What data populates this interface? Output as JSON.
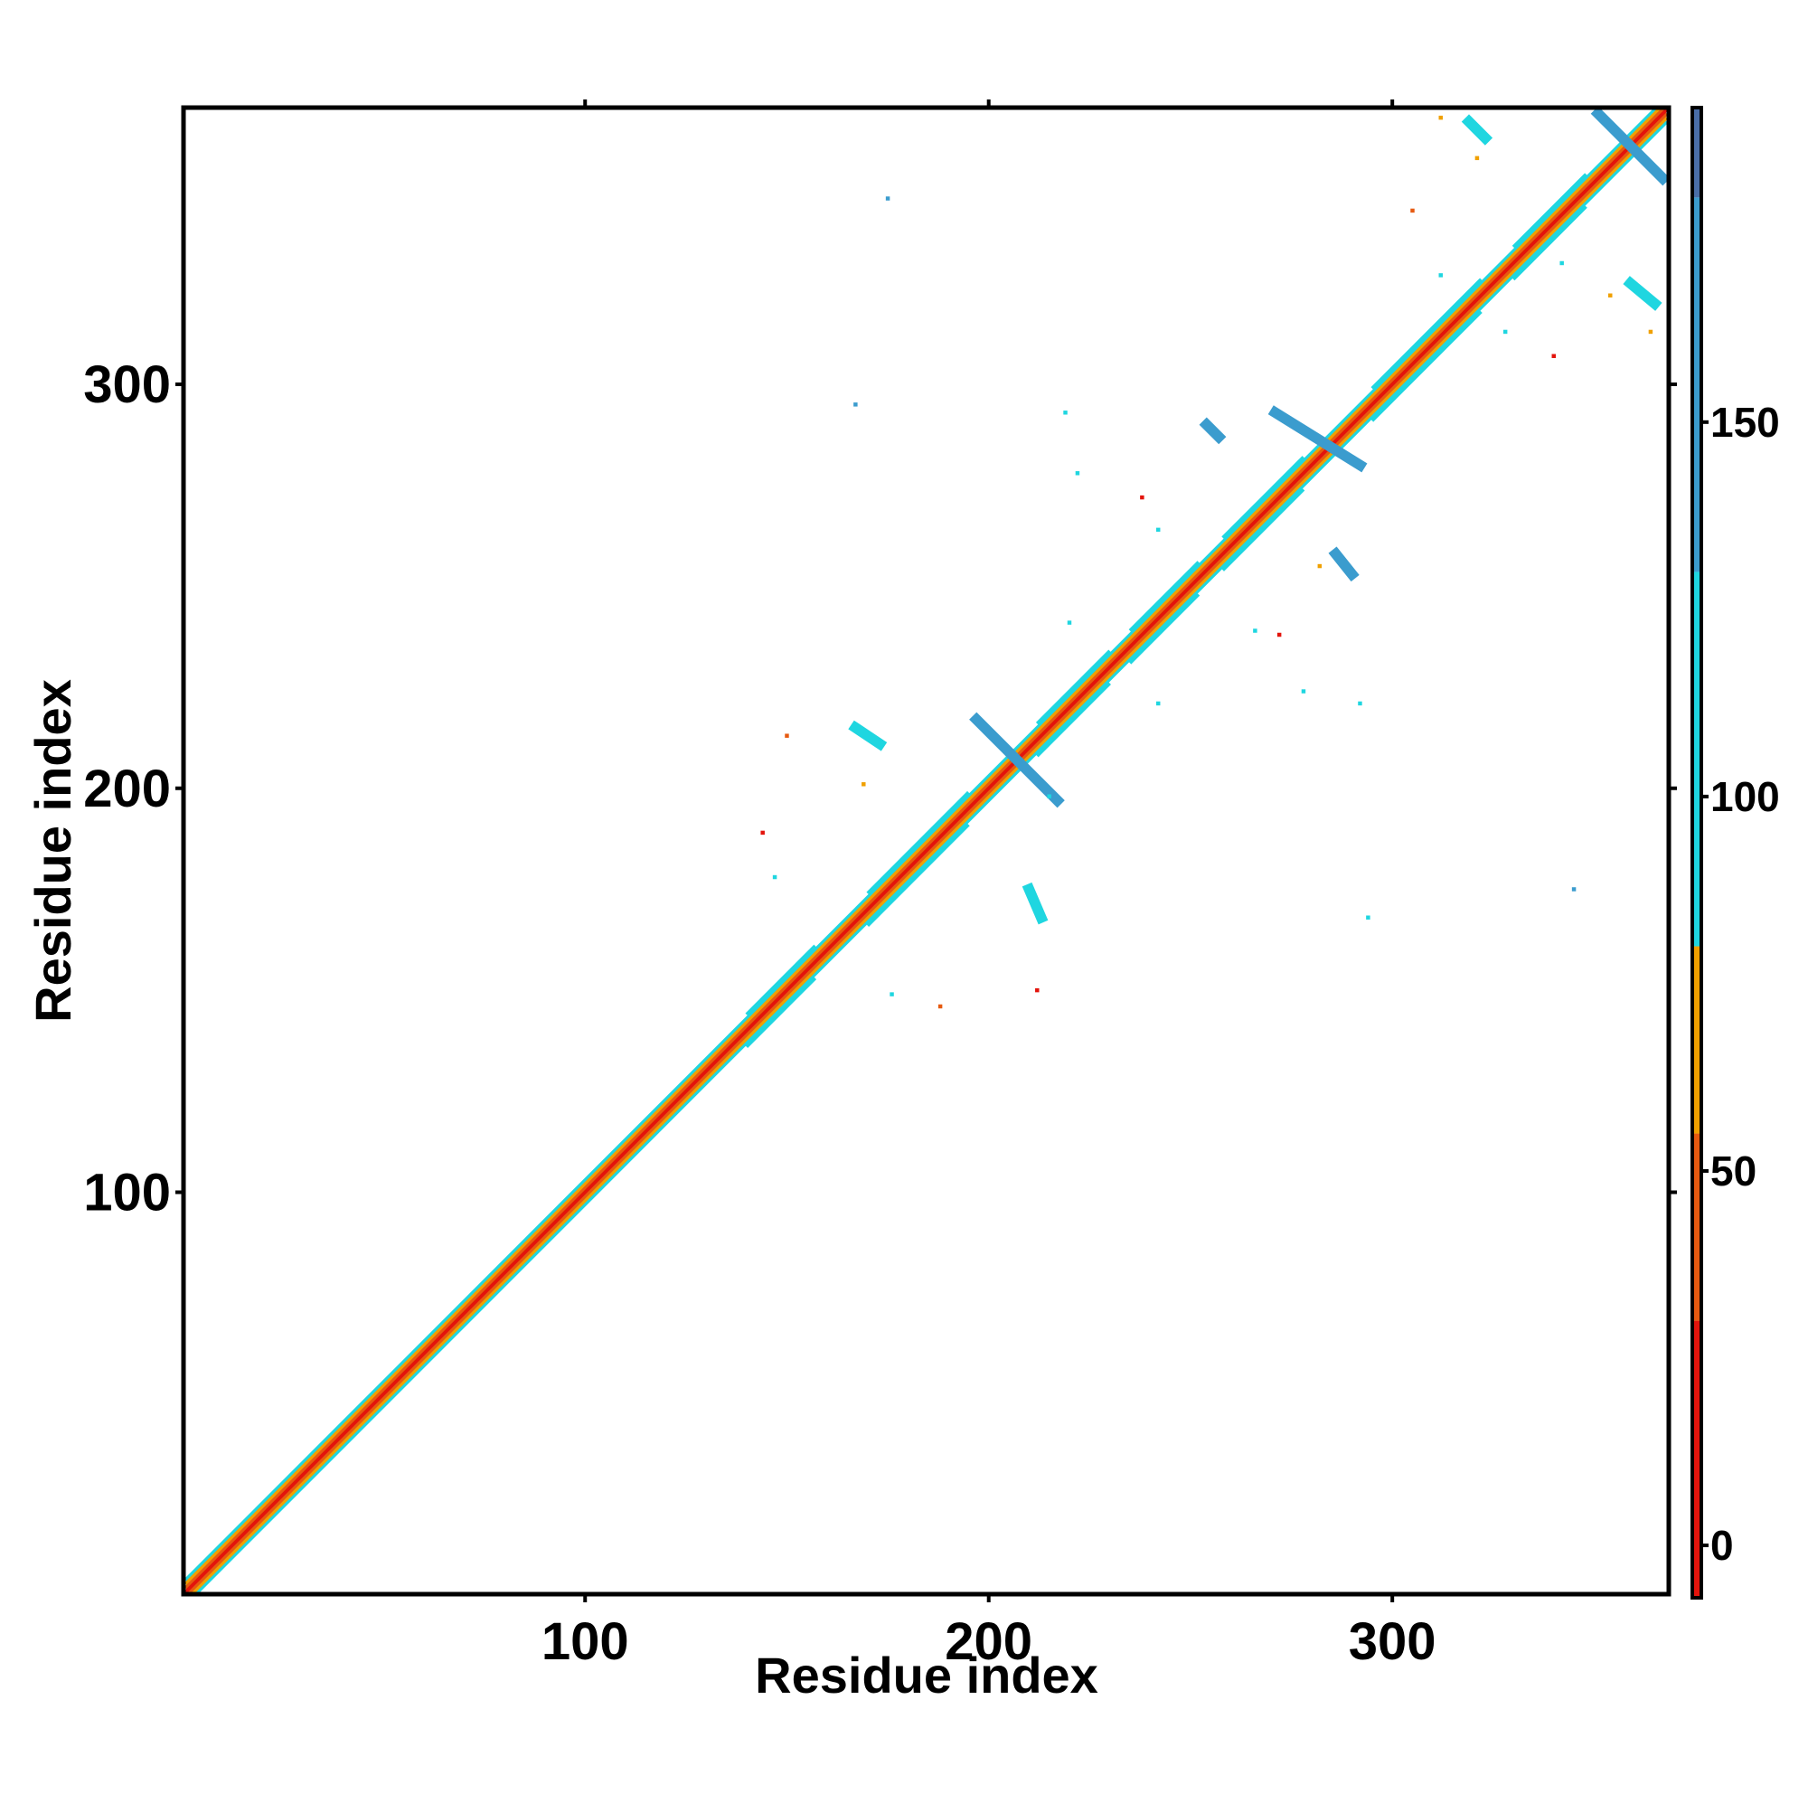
{
  "chart_data": {
    "type": "heatmap",
    "xlabel": "Residue index",
    "ylabel": "Residue index",
    "xlim": [
      0.5,
      368.5
    ],
    "ylim": [
      0.5,
      368.5
    ],
    "xticks": [
      100,
      200,
      300
    ],
    "yticks": [
      100,
      200,
      300
    ],
    "colorbar": {
      "lim": [
        -7,
        192
      ],
      "ticks": [
        0,
        50,
        100,
        150
      ],
      "bins": [
        -7,
        30,
        55,
        80,
        130,
        180,
        192
      ],
      "colors": [
        "#e3140c",
        "#e65a10",
        "#f0a000",
        "#1fd6e0",
        "#3b9cce",
        "#4a6ea8",
        "#ffffff"
      ]
    },
    "bands": [
      {
        "x": [
          1,
          368
        ],
        "offset": 0,
        "value": 5
      },
      {
        "x": [
          1,
          368
        ],
        "offset": 1,
        "value": 40
      },
      {
        "x": [
          1,
          368
        ],
        "offset": -1,
        "value": 40
      },
      {
        "x": [
          1,
          368
        ],
        "offset": 2,
        "value": 60
      },
      {
        "x": [
          1,
          368
        ],
        "offset": -2,
        "value": 60
      },
      {
        "x": [
          1,
          368
        ],
        "offset": 3,
        "value": 95
      },
      {
        "x": [
          1,
          368
        ],
        "offset": -3,
        "value": 95
      },
      {
        "x": [
          140,
          157
        ],
        "offset": 4,
        "value": 100
      },
      {
        "x": [
          140,
          157
        ],
        "offset": -4,
        "value": 100
      },
      {
        "x": [
          170,
          195
        ],
        "offset": 4,
        "value": 100
      },
      {
        "x": [
          170,
          195
        ],
        "offset": -4,
        "value": 100
      },
      {
        "x": [
          212,
          230
        ],
        "offset": 4,
        "value": 100
      },
      {
        "x": [
          212,
          230
        ],
        "offset": -4,
        "value": 100
      },
      {
        "x": [
          235,
          252
        ],
        "offset": 4,
        "value": 100
      },
      {
        "x": [
          235,
          252
        ],
        "offset": -4,
        "value": 100
      },
      {
        "x": [
          258,
          278
        ],
        "offset": 4,
        "value": 100
      },
      {
        "x": [
          258,
          278
        ],
        "offset": -4,
        "value": 100
      },
      {
        "x": [
          295,
          322
        ],
        "offset": 4,
        "value": 100
      },
      {
        "x": [
          295,
          322
        ],
        "offset": -4,
        "value": 100
      },
      {
        "x": [
          330,
          348
        ],
        "offset": 4,
        "value": 100
      },
      {
        "x": [
          330,
          348
        ],
        "offset": -4,
        "value": 100
      }
    ],
    "strands": [
      {
        "x": [
          197,
          217
        ],
        "y": [
          217,
          197
        ],
        "value": 130
      },
      {
        "x": [
          271,
          292
        ],
        "y": [
          293,
          280
        ],
        "value": 135
      },
      {
        "x": [
          351,
          367
        ],
        "y": [
          367,
          351
        ],
        "value": 135
      },
      {
        "x": [
          254,
          257
        ],
        "y": [
          290,
          287
        ],
        "value": 145
      },
      {
        "x": [
          286,
          290
        ],
        "y": [
          258,
          253
        ],
        "value": 130
      },
      {
        "x": [
          319,
          323
        ],
        "y": [
          365,
          361
        ],
        "value": 110
      },
      {
        "x": [
          359,
          365
        ],
        "y": [
          325,
          320
        ],
        "value": 120
      },
      {
        "x": [
          167,
          173
        ],
        "y": [
          215,
          211
        ],
        "value": 110
      },
      {
        "x": [
          210,
          213
        ],
        "y": [
          175,
          168
        ],
        "value": 110
      }
    ],
    "spots": [
      [
        312,
        366,
        60
      ],
      [
        321,
        356,
        60
      ],
      [
        305,
        343,
        40
      ],
      [
        340,
        307,
        10
      ],
      [
        354,
        322,
        65
      ],
      [
        364,
        313,
        65
      ],
      [
        238,
        272,
        10
      ],
      [
        272,
        238,
        10
      ],
      [
        282,
        255,
        65
      ],
      [
        144,
        189,
        10
      ],
      [
        150,
        213,
        30
      ],
      [
        188,
        146,
        30
      ],
      [
        212,
        150,
        10
      ],
      [
        169,
        201,
        65
      ],
      [
        345,
        175,
        140
      ],
      [
        294,
        168,
        100
      ],
      [
        175,
        346,
        140
      ],
      [
        167,
        295,
        140
      ],
      [
        219,
        293,
        100
      ],
      [
        222,
        278,
        100
      ],
      [
        242,
        264,
        100
      ],
      [
        266,
        239,
        100
      ],
      [
        278,
        224,
        100
      ],
      [
        292,
        221,
        100
      ],
      [
        242,
        221,
        100
      ],
      [
        220,
        241,
        100
      ],
      [
        147,
        178,
        100
      ],
      [
        176,
        149,
        100
      ],
      [
        312,
        327,
        100
      ],
      [
        328,
        313,
        100
      ],
      [
        342,
        330,
        100
      ],
      [
        215,
        198,
        100
      ]
    ]
  }
}
